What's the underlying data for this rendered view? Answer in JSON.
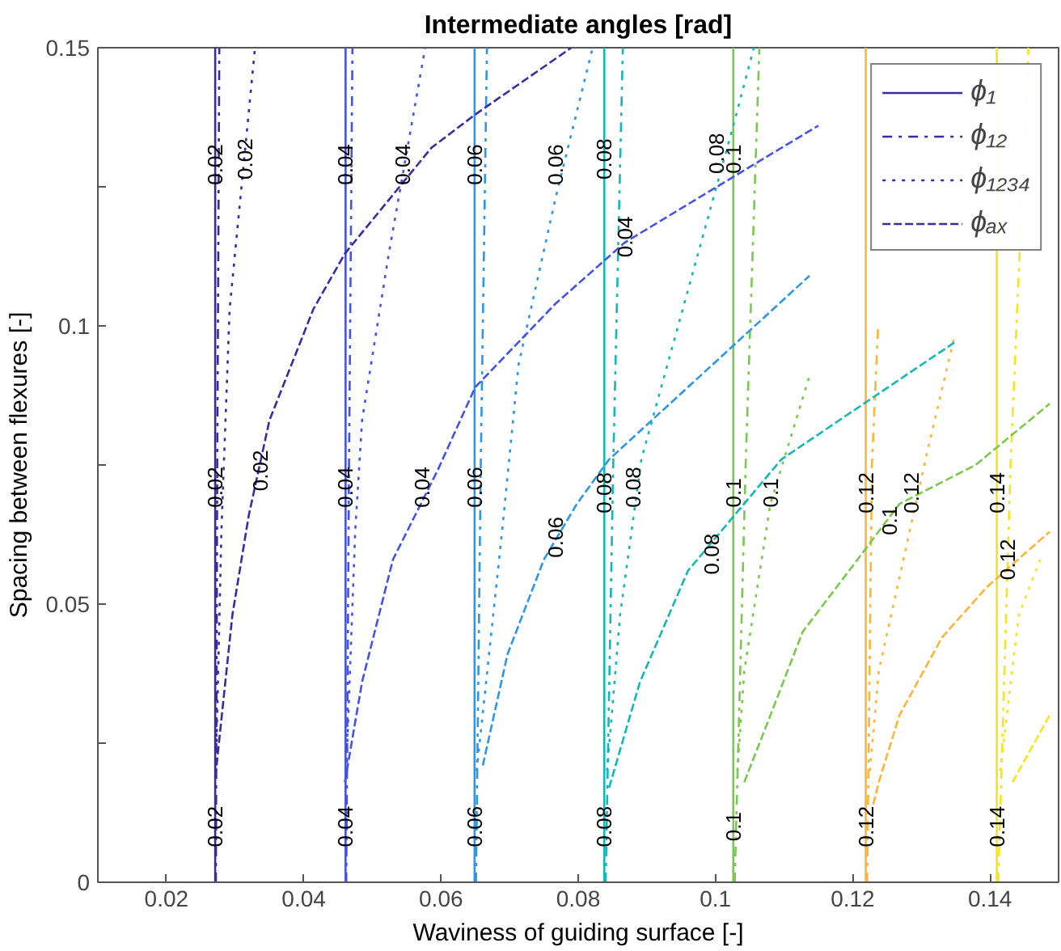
{
  "chart_data": {
    "type": "line",
    "title": "Intermediate angles [rad]",
    "xlabel": "Waviness of guiding surface [-]",
    "ylabel": "Spacing between flexures [-]",
    "xlim": [
      0.01,
      0.15
    ],
    "ylim": [
      0,
      0.15
    ],
    "xticks": [
      0.02,
      0.04,
      0.06,
      0.08,
      0.1,
      0.12,
      0.14
    ],
    "yticks": [
      0,
      {
        "value": 0.025,
        "label": null
      },
      0.05,
      {
        "value": 0.075,
        "label": null
      },
      0.1,
      {
        "value": 0.125,
        "label": null
      },
      0.15
    ],
    "legend": "top right",
    "series": [
      {
        "name": "ϕ₁",
        "color": "#3e2a9f",
        "line_style": "solid",
        "x": [
          0.0271,
          0.0271
        ],
        "values": [
          0,
          0.15
        ]
      },
      {
        "color": "#4353e8",
        "line_style": "solid",
        "x": [
          0.0461,
          0.0461
        ],
        "values": [
          0,
          0.15
        ]
      },
      {
        "color": "#2c96e8",
        "line_style": "solid",
        "x": [
          0.0649,
          0.0649
        ],
        "values": [
          0,
          0.15
        ]
      },
      {
        "color": "#12b8b8",
        "line_style": "solid",
        "x": [
          0.0838,
          0.0838
        ],
        "values": [
          0,
          0.15
        ]
      },
      {
        "color": "#7ac94e",
        "line_style": "solid",
        "x": [
          0.1026,
          0.1026
        ],
        "values": [
          0,
          0.15
        ]
      },
      {
        "color": "#fbb537",
        "line_style": "solid",
        "x": [
          0.1219,
          0.1219
        ],
        "values": [
          0,
          0.15
        ]
      },
      {
        "color": "#f5e51e",
        "line_style": "solid",
        "x": [
          0.141,
          0.141
        ],
        "values": [
          0,
          0.15
        ]
      },
      {
        "name": "ϕ₁₂",
        "color": "#3e2a9f",
        "line_style": "dashdot",
        "x": [
          0.0272,
          0.0274,
          0.0277
        ],
        "values": [
          0,
          0.075,
          0.15
        ]
      },
      {
        "color": "#4353e8",
        "line_style": "dashdot",
        "x": [
          0.0462,
          0.0466,
          0.0471
        ],
        "values": [
          0,
          0.075,
          0.15
        ]
      },
      {
        "color": "#2c96e8",
        "line_style": "dashdot",
        "x": [
          0.0651,
          0.0658,
          0.0667
        ],
        "values": [
          0,
          0.075,
          0.15
        ]
      },
      {
        "color": "#12b8b8",
        "line_style": "dashdot",
        "x": [
          0.084,
          0.0851,
          0.0865
        ],
        "values": [
          0,
          0.075,
          0.15
        ]
      },
      {
        "color": "#7ac94e",
        "line_style": "dashdot",
        "x": [
          0.1028,
          0.1044,
          0.1064
        ],
        "values": [
          0,
          0.075,
          0.15
        ]
      },
      {
        "color": "#fbb537",
        "line_style": "dashdot",
        "x": [
          0.1221,
          0.1228,
          0.1237
        ],
        "values": [
          0,
          0.075,
          0.1
        ]
      },
      {
        "color": "#f5e51e",
        "line_style": "dashdot",
        "x": [
          0.1412,
          0.143,
          0.1456
        ],
        "values": [
          0,
          0.075,
          0.15
        ]
      },
      {
        "name": "ϕ₁₂₃₄",
        "color": "#3e2a9f",
        "line_style": "dotted",
        "x": [
          0.0272,
          0.028,
          0.0292,
          0.0329
        ],
        "values": [
          0.02,
          0.063,
          0.103,
          0.15
        ]
      },
      {
        "color": "#4353e8",
        "line_style": "dotted",
        "x": [
          0.0462,
          0.0475,
          0.0485,
          0.0524,
          0.0577
        ],
        "values": [
          0.02,
          0.063,
          0.083,
          0.113,
          0.15
        ]
      },
      {
        "color": "#2c96e8",
        "line_style": "dotted",
        "x": [
          0.0652,
          0.0689,
          0.0713,
          0.0767,
          0.0821
        ],
        "values": [
          0.02,
          0.063,
          0.093,
          0.123,
          0.15
        ]
      },
      {
        "color": "#12b8b8",
        "line_style": "dotted",
        "x": [
          0.0842,
          0.0861,
          0.0892,
          0.1026,
          0.1056
        ],
        "values": [
          0.02,
          0.048,
          0.076,
          0.136,
          0.15
        ]
      },
      {
        "color": "#7ac94e",
        "line_style": "dotted",
        "x": [
          0.1032,
          0.1042,
          0.108,
          0.1137
        ],
        "values": [
          0.02,
          0.038,
          0.068,
          0.091
        ]
      },
      {
        "color": "#fbb537",
        "line_style": "dotted",
        "x": [
          0.1225,
          0.1238,
          0.1308,
          0.1348
        ],
        "values": [
          0.02,
          0.038,
          0.077,
          0.098
        ]
      },
      {
        "color": "#f5e51e",
        "line_style": "dotted",
        "x": [
          0.1415,
          0.1442,
          0.1473
        ],
        "values": [
          0.02,
          0.048,
          0.058
        ]
      },
      {
        "name": "ϕₐₓ",
        "color": "#3e2a9f",
        "line_style": "dashed",
        "x": [
          0.0273,
          0.0296,
          0.032,
          0.035,
          0.0414,
          0.046,
          0.0586,
          0.065,
          0.079
        ],
        "values": [
          0.021,
          0.048,
          0.066,
          0.083,
          0.103,
          0.113,
          0.132,
          0.138,
          0.15
        ]
      },
      {
        "color": "#4353e8",
        "line_style": "dashed",
        "x": [
          0.046,
          0.0485,
          0.053,
          0.0595,
          0.065,
          0.0767,
          0.0868,
          0.1002,
          0.115
        ],
        "values": [
          0.018,
          0.036,
          0.058,
          0.074,
          0.089,
          0.104,
          0.115,
          0.125,
          0.136
        ]
      },
      {
        "color": "#2c96e8",
        "line_style": "dashed",
        "x": [
          0.0661,
          0.0697,
          0.075,
          0.0798,
          0.0845,
          0.1137
        ],
        "values": [
          0.021,
          0.041,
          0.058,
          0.068,
          0.076,
          0.109
        ]
      },
      {
        "color": "#12b8b8",
        "line_style": "dashed",
        "x": [
          0.0845,
          0.089,
          0.096,
          0.1096,
          0.1348
        ],
        "values": [
          0.017,
          0.036,
          0.056,
          0.076,
          0.097
        ]
      },
      {
        "color": "#7ac94e",
        "line_style": "dashed",
        "x": [
          0.1042,
          0.108,
          0.1127,
          0.1207,
          0.1268,
          0.1379,
          0.1487
        ],
        "values": [
          0.018,
          0.03,
          0.045,
          0.058,
          0.068,
          0.075,
          0.086
        ]
      },
      {
        "color": "#fbb537",
        "line_style": "dashed",
        "x": [
          0.123,
          0.1238,
          0.1268,
          0.133,
          0.1395,
          0.145,
          0.1487
        ],
        "values": [
          0.014,
          0.018,
          0.03,
          0.044,
          0.053,
          0.059,
          0.063
        ]
      },
      {
        "color": "#f5e51e",
        "line_style": "dashed",
        "x": [
          0.1433,
          0.1487
        ],
        "values": [
          0.018,
          0.03
        ]
      }
    ],
    "annotations": [
      {
        "text": "0.02",
        "x": 0.0271,
        "y": 0.01
      },
      {
        "text": "0.04",
        "x": 0.0461,
        "y": 0.01
      },
      {
        "text": "0.06",
        "x": 0.0649,
        "y": 0.01
      },
      {
        "text": "0.08",
        "x": 0.0838,
        "y": 0.01
      },
      {
        "text": "0.1",
        "x": 0.1026,
        "y": 0.01
      },
      {
        "text": "0.12",
        "x": 0.1219,
        "y": 0.01
      },
      {
        "text": "0.14",
        "x": 0.141,
        "y": 0.01
      },
      {
        "text": "0.02",
        "x": 0.0271,
        "y": 0.071
      },
      {
        "text": "0.04",
        "x": 0.0461,
        "y": 0.071
      },
      {
        "text": "0.06",
        "x": 0.0649,
        "y": 0.071
      },
      {
        "text": "0.08",
        "x": 0.0838,
        "y": 0.07
      },
      {
        "text": "0.1",
        "x": 0.1026,
        "y": 0.07
      },
      {
        "text": "0.12",
        "x": 0.1219,
        "y": 0.07
      },
      {
        "text": "0.14",
        "x": 0.141,
        "y": 0.07
      },
      {
        "text": "0.02",
        "x": 0.0271,
        "y": 0.129
      },
      {
        "text": "0.04",
        "x": 0.0461,
        "y": 0.129
      },
      {
        "text": "0.06",
        "x": 0.0649,
        "y": 0.129
      },
      {
        "text": "0.08",
        "x": 0.0838,
        "y": 0.13
      },
      {
        "text": "0.1",
        "x": 0.1026,
        "y": 0.13
      },
      {
        "text": "0.02",
        "x": 0.0315,
        "y": 0.13
      },
      {
        "text": "0.04",
        "x": 0.0544,
        "y": 0.129
      },
      {
        "text": "0.06",
        "x": 0.0767,
        "y": 0.129
      },
      {
        "text": "0.08",
        "x": 0.1002,
        "y": 0.131
      },
      {
        "text": "0.08",
        "x": 0.088,
        "y": 0.071
      },
      {
        "text": "0.1",
        "x": 0.108,
        "y": 0.07
      },
      {
        "text": "0.12",
        "x": 0.1285,
        "y": 0.07
      },
      {
        "text": "0.02",
        "x": 0.0337,
        "y": 0.074
      },
      {
        "text": "0.04",
        "x": 0.0572,
        "y": 0.071
      },
      {
        "text": "0.06",
        "x": 0.0767,
        "y": 0.062
      },
      {
        "text": "0.04",
        "x": 0.0868,
        "y": 0.116
      },
      {
        "text": "0.08",
        "x": 0.0995,
        "y": 0.059
      },
      {
        "text": "0.1",
        "x": 0.1254,
        "y": 0.065
      },
      {
        "text": "0.12",
        "x": 0.1426,
        "y": 0.058
      }
    ]
  }
}
